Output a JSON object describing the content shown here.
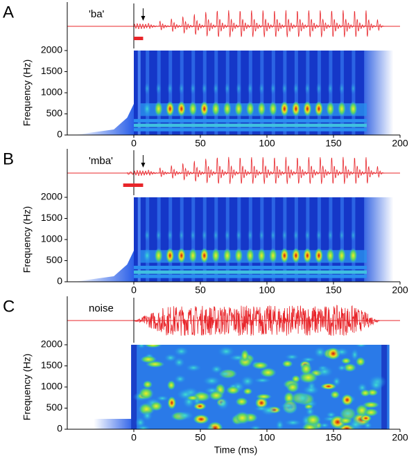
{
  "chart_data": [
    {
      "type": "spectrogram",
      "panel_label": "A",
      "waveform_label": "'ba'",
      "ylabel": "Frequency (Hz)",
      "xlim": [
        -50,
        200
      ],
      "xticks": [
        0,
        50,
        100,
        150,
        200
      ],
      "ylim": [
        0,
        2000
      ],
      "yticks": [
        0,
        500,
        1000,
        1500,
        2000
      ],
      "marker_range": [
        0,
        7
      ],
      "arrow_x": 7,
      "signal": "speech",
      "color": "#e8252a"
    },
    {
      "type": "spectrogram",
      "panel_label": "B",
      "waveform_label": "'mba'",
      "ylabel": "Frequency (Hz)",
      "xlim": [
        -50,
        200
      ],
      "xticks": [
        0,
        50,
        100,
        150,
        200
      ],
      "ylim": [
        0,
        2000
      ],
      "yticks": [
        0,
        500,
        1000,
        1500,
        2000
      ],
      "marker_range": [
        -8,
        7
      ],
      "arrow_x": 7,
      "signal": "speech",
      "color": "#e8252a"
    },
    {
      "type": "spectrogram",
      "panel_label": "C",
      "waveform_label": "noise",
      "ylabel": "Frequency (Hz)",
      "xlabel": "Time (ms)",
      "xlim": [
        -50,
        200
      ],
      "xticks": [
        0,
        50,
        100,
        150,
        200
      ],
      "ylim": [
        0,
        2000
      ],
      "yticks": [
        0,
        500,
        1000,
        1500,
        2000
      ],
      "signal": "noise",
      "color": "#e8252a"
    }
  ]
}
